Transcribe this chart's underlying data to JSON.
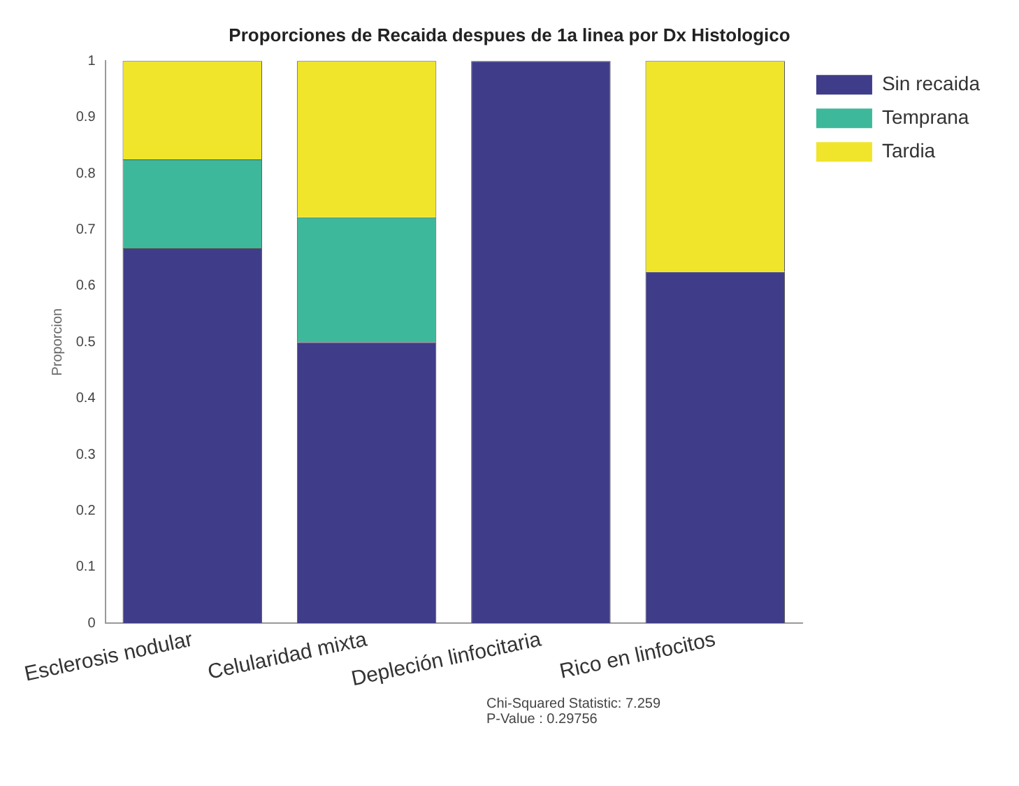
{
  "chart_data": {
    "type": "bar",
    "stacked": true,
    "title": "Proporciones de Recaida despues de 1a linea por Dx Histologico",
    "ylabel": "Proporcion",
    "categories": [
      "Esclerosis nodular",
      "Celularidad mixta",
      "Depleción linfocitaria",
      "Rico en linfocitos"
    ],
    "series": [
      {
        "name": "Sin recaida",
        "color": "#3f3c8a",
        "values": [
          0.667,
          0.5,
          1,
          0.625
        ]
      },
      {
        "name": "Temprana",
        "color": "#3db89a",
        "values": [
          0.158,
          0.222,
          0,
          0
        ]
      },
      {
        "name": "Tardia",
        "color": "#f0e52a",
        "values": [
          0.175,
          0.278,
          0,
          0.375
        ]
      }
    ],
    "ylim": [
      0,
      1
    ],
    "yticks": [
      0,
      0.1,
      0.2,
      0.3,
      0.4,
      0.5,
      0.6,
      0.7,
      0.8,
      0.9,
      1
    ],
    "grid": false,
    "legend": "top right",
    "annotations": [
      "Chi-Squared Statistic: 7.259",
      "P-Value : 0.29756"
    ]
  }
}
